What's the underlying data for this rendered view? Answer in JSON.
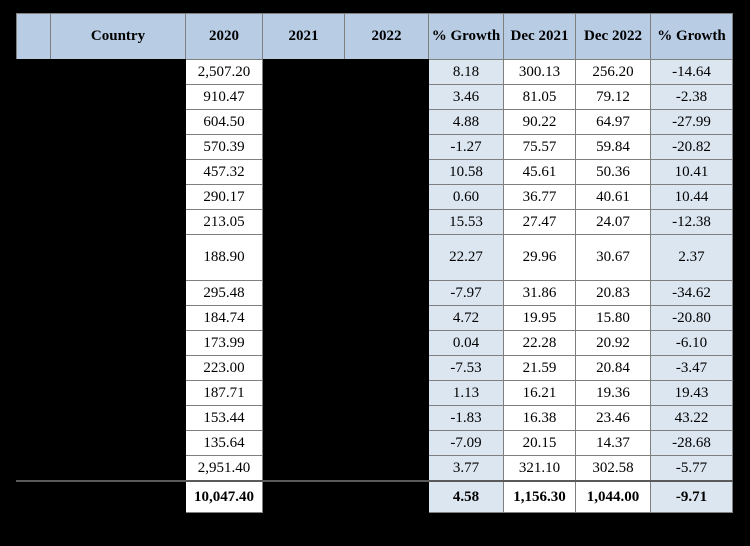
{
  "colors": {
    "page_background": "#000000",
    "header_bg": "#b8cce4",
    "growth_col_bg": "#dce6f1",
    "value_col_bg": "#ffffff",
    "redacted_bg": "#000000",
    "grid_border": "#7f7f7f",
    "text": "#000000"
  },
  "table": {
    "headers": [
      "",
      "Country",
      "2020",
      "2021",
      "2022",
      "% Growth",
      "Dec 2021",
      "Dec 2022",
      "% Growth"
    ],
    "rows": [
      {
        "y2020": "2,507.20",
        "growth": "8.18",
        "dec2021": "300.13",
        "dec2022": "256.20",
        "growth2": "-14.64"
      },
      {
        "y2020": "910.47",
        "growth": "3.46",
        "dec2021": "81.05",
        "dec2022": "79.12",
        "growth2": "-2.38"
      },
      {
        "y2020": "604.50",
        "growth": "4.88",
        "dec2021": "90.22",
        "dec2022": "64.97",
        "growth2": "-27.99"
      },
      {
        "y2020": "570.39",
        "growth": "-1.27",
        "dec2021": "75.57",
        "dec2022": "59.84",
        "growth2": "-20.82"
      },
      {
        "y2020": "457.32",
        "growth": "10.58",
        "dec2021": "45.61",
        "dec2022": "50.36",
        "growth2": "10.41"
      },
      {
        "y2020": "290.17",
        "growth": "0.60",
        "dec2021": "36.77",
        "dec2022": "40.61",
        "growth2": "10.44"
      },
      {
        "y2020": "213.05",
        "growth": "15.53",
        "dec2021": "27.47",
        "dec2022": "24.07",
        "growth2": "-12.38"
      },
      {
        "y2020": "188.90",
        "growth": "22.27",
        "dec2021": "29.96",
        "dec2022": "30.67",
        "growth2": "2.37",
        "tall": true
      },
      {
        "y2020": "295.48",
        "growth": "-7.97",
        "dec2021": "31.86",
        "dec2022": "20.83",
        "growth2": "-34.62"
      },
      {
        "y2020": "184.74",
        "growth": "4.72",
        "dec2021": "19.95",
        "dec2022": "15.80",
        "growth2": "-20.80"
      },
      {
        "y2020": "173.99",
        "growth": "0.04",
        "dec2021": "22.28",
        "dec2022": "20.92",
        "growth2": "-6.10"
      },
      {
        "y2020": "223.00",
        "growth": "-7.53",
        "dec2021": "21.59",
        "dec2022": "20.84",
        "growth2": "-3.47"
      },
      {
        "y2020": "187.71",
        "growth": "1.13",
        "dec2021": "16.21",
        "dec2022": "19.36",
        "growth2": "19.43"
      },
      {
        "y2020": "153.44",
        "growth": "-1.83",
        "dec2021": "16.38",
        "dec2022": "23.46",
        "growth2": "43.22"
      },
      {
        "y2020": "135.64",
        "growth": "-7.09",
        "dec2021": "20.15",
        "dec2022": "14.37",
        "growth2": "-28.68"
      },
      {
        "y2020": "2,951.40",
        "growth": "3.77",
        "dec2021": "321.10",
        "dec2022": "302.58",
        "growth2": "-5.77"
      },
      {
        "y2020": "10,047.40",
        "growth": "4.58",
        "dec2021": "1,156.30",
        "dec2022": "1,044.00",
        "growth2": "-9.71",
        "total": true
      }
    ]
  }
}
